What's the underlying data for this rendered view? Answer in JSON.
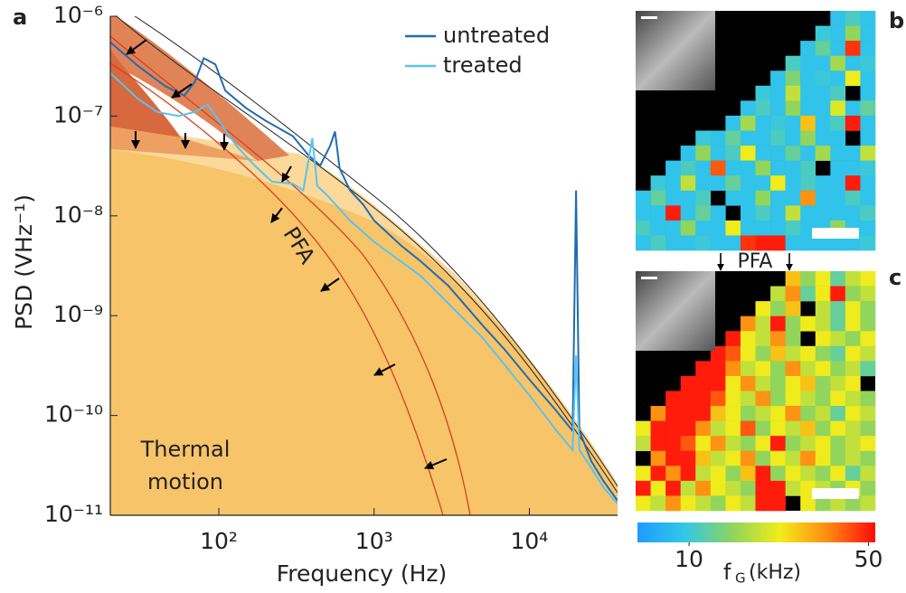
{
  "chart_data": [
    {
      "type": "line",
      "panel": "a",
      "xlabel": "Frequency (Hz)",
      "ylabel": "PSD (VHz⁻¹)",
      "log_x": true,
      "log_y": true,
      "xlim": [
        20,
        37000
      ],
      "ylim": [
        1e-11,
        1e-06
      ],
      "xticks": [
        {
          "value": 100,
          "label": "10²"
        },
        {
          "value": 1000,
          "label": "10³"
        },
        {
          "value": 10000,
          "label": "10⁴"
        }
      ],
      "yticks": [
        {
          "value": 1e-11,
          "label": "10⁻¹¹"
        },
        {
          "value": 1e-10,
          "label": "10⁻¹⁰"
        },
        {
          "value": 1e-09,
          "label": "10⁻⁹"
        },
        {
          "value": 1e-08,
          "label": "10⁻⁸"
        },
        {
          "value": 1e-07,
          "label": "10⁻⁷"
        },
        {
          "value": 1e-06,
          "label": "10⁻⁶"
        }
      ],
      "annotations": [
        "PFA"
      ],
      "region_label": [
        "Thermal",
        "motion"
      ],
      "legend": "upper right",
      "series": [
        {
          "name": "untreated",
          "color": "#1f6db3",
          "x": [
            20,
            30,
            45,
            60,
            70,
            80,
            95,
            110,
            150,
            200,
            300,
            380,
            450,
            520,
            560,
            600,
            700,
            850,
            1000,
            1500,
            2000,
            3000,
            5000,
            7000,
            10000,
            15000,
            19000,
            20000,
            21000,
            25000,
            30000,
            37000
          ],
          "values": [
            5.5e-07,
            3.2e-07,
            2e-07,
            1.6e-07,
            2.2e-07,
            3.8e-07,
            3.3e-07,
            1.8e-07,
            1.2e-07,
            9e-08,
            6.3e-08,
            4e-08,
            3.2e-08,
            5e-08,
            7e-08,
            3e-08,
            1.8e-08,
            1.3e-08,
            9e-09,
            5e-09,
            3.5e-09,
            2e-09,
            8e-10,
            4.5e-10,
            2.3e-10,
            1.1e-10,
            7e-11,
            1.8e-08,
            7e-11,
            3.5e-11,
            2.2e-11,
            1.4e-11
          ]
        },
        {
          "name": "treated",
          "color": "#5bc2ec",
          "x": [
            20,
            30,
            40,
            55,
            70,
            85,
            100,
            130,
            170,
            220,
            300,
            350,
            400,
            430,
            500,
            700,
            1000,
            2000,
            5000,
            10000,
            15000,
            19000,
            20000,
            21000,
            25000,
            30000,
            37000
          ],
          "values": [
            2.7e-07,
            1.5e-07,
            1.1e-07,
            1e-07,
            1.1e-07,
            1.3e-07,
            9e-08,
            5e-08,
            3.2e-08,
            2.2e-08,
            2.1e-08,
            1.8e-08,
            6e-08,
            2e-08,
            1.6e-08,
            9e-09,
            5.5e-09,
            2.5e-09,
            6e-10,
            1.6e-10,
            7e-11,
            4.5e-11,
            4e-10,
            4.5e-11,
            3e-11,
            1.9e-11,
            1.3e-11
          ]
        }
      ]
    },
    {
      "type": "heatmap",
      "panel": "b",
      "z": [
        [
          null,
          null,
          null,
          null,
          null,
          null,
          null,
          null,
          null,
          null,
          null,
          null,
          null,
          8,
          12,
          8
        ],
        [
          null,
          null,
          null,
          null,
          null,
          null,
          null,
          null,
          null,
          null,
          null,
          null,
          10,
          8,
          20,
          8
        ],
        [
          null,
          null,
          null,
          null,
          null,
          null,
          null,
          null,
          null,
          null,
          null,
          8,
          15,
          8,
          48,
          8
        ],
        [
          null,
          null,
          null,
          null,
          null,
          null,
          null,
          null,
          null,
          null,
          12,
          8,
          8,
          22,
          8,
          10
        ],
        [
          null,
          null,
          null,
          null,
          null,
          null,
          null,
          null,
          null,
          8,
          18,
          8,
          10,
          8,
          30,
          8
        ],
        [
          null,
          null,
          null,
          null,
          null,
          null,
          null,
          null,
          10,
          8,
          25,
          8,
          8,
          12,
          null,
          8
        ],
        [
          null,
          null,
          null,
          null,
          null,
          null,
          null,
          8,
          12,
          8,
          20,
          8,
          8,
          28,
          8,
          15
        ],
        [
          null,
          null,
          null,
          null,
          null,
          null,
          8,
          22,
          8,
          10,
          8,
          35,
          8,
          12,
          50,
          8
        ],
        [
          null,
          null,
          null,
          null,
          10,
          8,
          15,
          8,
          8,
          12,
          8,
          20,
          8,
          8,
          null,
          8
        ],
        [
          null,
          null,
          null,
          8,
          20,
          8,
          12,
          30,
          8,
          8,
          15,
          8,
          22,
          8,
          8,
          25
        ],
        [
          null,
          null,
          8,
          12,
          8,
          45,
          8,
          8,
          20,
          8,
          8,
          12,
          null,
          8,
          8,
          10
        ],
        [
          null,
          10,
          8,
          25,
          8,
          8,
          15,
          8,
          8,
          30,
          8,
          12,
          8,
          8,
          50,
          8
        ],
        [
          8,
          15,
          8,
          8,
          12,
          null,
          8,
          8,
          20,
          8,
          8,
          40,
          8,
          8,
          12,
          8
        ],
        [
          8,
          8,
          50,
          8,
          15,
          8,
          null,
          8,
          12,
          8,
          25,
          8,
          8,
          8,
          8,
          12
        ],
        [
          12,
          8,
          8,
          20,
          8,
          8,
          30,
          8,
          8,
          8,
          12,
          8,
          8,
          20,
          8,
          8
        ],
        [
          8,
          12,
          8,
          8,
          10,
          8,
          8,
          48,
          50,
          50,
          8,
          8,
          8,
          8,
          8,
          10
        ]
      ]
    },
    {
      "type": "heatmap",
      "panel": "c",
      "annotation": "PFA",
      "colormap": [
        "#1e9bff",
        "#33c8e6",
        "#8fd45e",
        "#f2ec1a",
        "#ff8a12",
        "#ff0a0a"
      ],
      "clim": [
        -1.5,
        51.5
      ],
      "cticks": [
        10,
        50
      ],
      "cbar_label": {
        "symbol": "f",
        "subscript": "G",
        "unit": "(kHz)"
      },
      "z": [
        [
          null,
          null,
          null,
          null,
          null,
          null,
          null,
          null,
          null,
          null,
          35,
          20,
          30,
          15,
          25,
          30
        ],
        [
          null,
          null,
          null,
          null,
          null,
          null,
          null,
          null,
          null,
          25,
          40,
          15,
          30,
          50,
          20,
          25
        ],
        [
          null,
          null,
          null,
          null,
          null,
          null,
          null,
          null,
          30,
          20,
          35,
          null,
          25,
          15,
          30,
          20
        ],
        [
          null,
          null,
          null,
          null,
          null,
          null,
          null,
          40,
          25,
          50,
          20,
          30,
          25,
          15,
          30,
          20
        ],
        [
          null,
          null,
          null,
          null,
          null,
          null,
          50,
          30,
          25,
          40,
          20,
          null,
          30,
          25,
          20,
          30
        ],
        [
          null,
          null,
          null,
          null,
          null,
          50,
          45,
          30,
          20,
          35,
          25,
          30,
          20,
          15,
          30,
          25
        ],
        [
          null,
          null,
          null,
          null,
          50,
          50,
          40,
          25,
          30,
          20,
          40,
          25,
          30,
          20,
          25,
          15
        ],
        [
          null,
          null,
          null,
          50,
          50,
          50,
          30,
          40,
          25,
          20,
          30,
          35,
          20,
          25,
          30,
          null
        ],
        [
          null,
          null,
          50,
          50,
          50,
          45,
          30,
          25,
          40,
          20,
          30,
          25,
          20,
          30,
          25,
          20
        ],
        [
          null,
          40,
          50,
          50,
          50,
          35,
          30,
          20,
          25,
          30,
          40,
          20,
          25,
          15,
          30,
          25
        ],
        [
          30,
          50,
          50,
          50,
          40,
          25,
          30,
          45,
          20,
          30,
          25,
          35,
          20,
          30,
          25,
          20
        ],
        [
          25,
          50,
          50,
          45,
          30,
          40,
          25,
          20,
          30,
          50,
          20,
          25,
          30,
          20,
          25,
          30
        ],
        [
          null,
          40,
          50,
          50,
          35,
          25,
          30,
          40,
          20,
          30,
          25,
          40,
          30,
          20,
          25,
          20
        ],
        [
          30,
          50,
          40,
          50,
          25,
          30,
          20,
          35,
          50,
          20,
          30,
          25,
          20,
          30,
          15,
          25
        ],
        [
          50,
          30,
          50,
          25,
          40,
          30,
          25,
          20,
          50,
          50,
          25,
          30,
          25,
          20,
          30,
          20
        ],
        [
          30,
          25,
          40,
          30,
          25,
          20,
          30,
          25,
          50,
          50,
          null,
          30,
          20,
          25,
          20,
          25
        ]
      ]
    }
  ]
}
